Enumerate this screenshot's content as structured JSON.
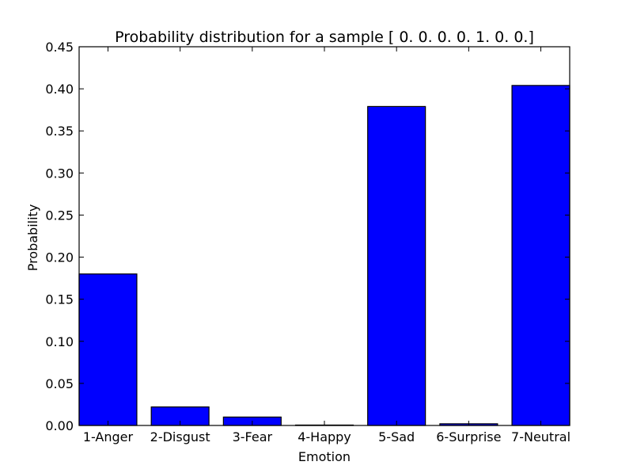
{
  "chart_data": {
    "type": "bar",
    "title": "Probability distribution for a sample [ 0.  0.  0.  0.  1.  0.  0.]",
    "xlabel": "Emotion",
    "ylabel": "Probability",
    "categories": [
      "1-Anger",
      "2-Disgust",
      "3-Fear",
      "4-Happy",
      "5-Sad",
      "6-Surprise",
      "7-Neutral"
    ],
    "values": [
      0.18,
      0.022,
      0.01,
      0.0005,
      0.379,
      0.002,
      0.404
    ],
    "ylim": [
      0,
      0.45
    ],
    "yticks": [
      "0.00",
      "0.05",
      "0.10",
      "0.15",
      "0.20",
      "0.25",
      "0.30",
      "0.35",
      "0.40",
      "0.45"
    ],
    "grid": false,
    "bar_color": "#0000ff"
  }
}
